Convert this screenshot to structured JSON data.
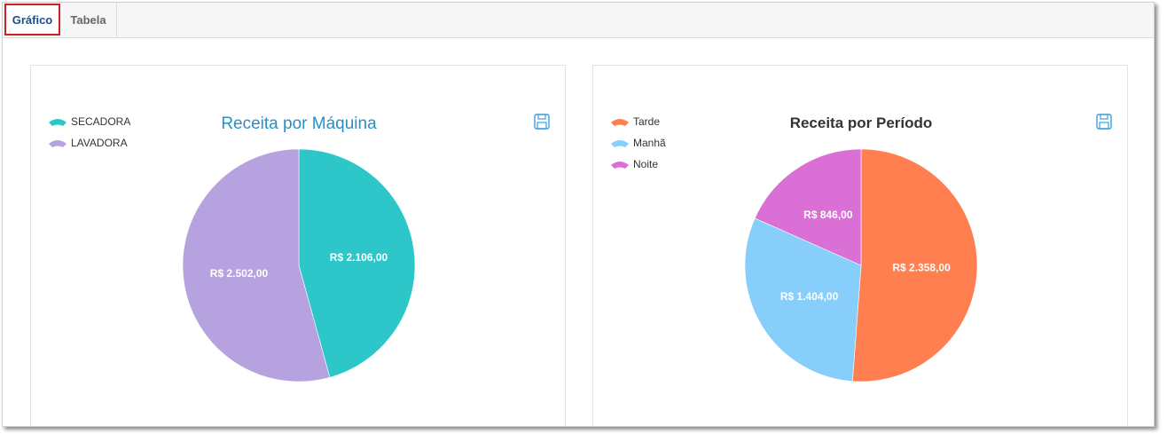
{
  "tabs": [
    {
      "label": "Gráfico",
      "active": true
    },
    {
      "label": "Tabela",
      "active": false
    }
  ],
  "icons": {
    "save": "floppy-disk-icon",
    "legend": "fan-shape-icon"
  },
  "chart_data": [
    {
      "type": "pie",
      "title": "Receita por Máquina",
      "title_color": "#2a8fc7",
      "legend_position": "top-left",
      "categories": [
        "SECADORA",
        "LAVADORA"
      ],
      "values": [
        2106,
        2502
      ],
      "labels": [
        "R$ 2.106,00",
        "R$ 2.502,00"
      ],
      "colors": [
        "#2ec7c9",
        "#b6a2de"
      ]
    },
    {
      "type": "pie",
      "title": "Receita por Período",
      "title_color": "#333333",
      "legend_position": "top-left",
      "categories": [
        "Tarde",
        "Manhã",
        "Noite"
      ],
      "values": [
        2358,
        1404,
        846
      ],
      "labels": [
        "R$ 2.358,00",
        "R$ 1.404,00",
        "R$ 846,00"
      ],
      "colors": [
        "#ff7f50",
        "#87cefa",
        "#da70d6"
      ]
    }
  ]
}
